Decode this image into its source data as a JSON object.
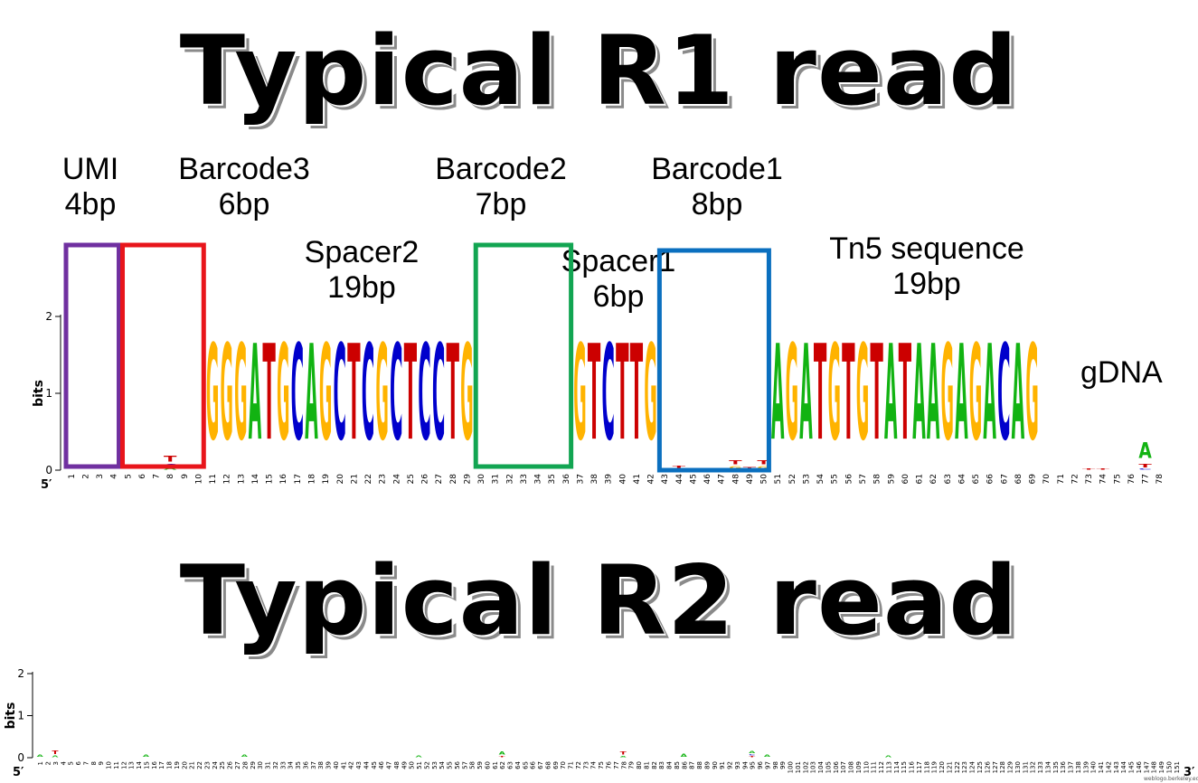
{
  "r1": {
    "title": "Typical R1 read",
    "segments": [
      {
        "id": "umi",
        "name": "UMI",
        "length": "4bp",
        "color": "#7030a0",
        "from": 1,
        "to": 4
      },
      {
        "id": "barcode3",
        "name": "Barcode3",
        "length": "6bp",
        "color": "#e8151b",
        "from": 5,
        "to": 10
      },
      {
        "id": "spacer2",
        "name": "Spacer2",
        "length": "19bp",
        "from": 11,
        "to": 29
      },
      {
        "id": "barcode2",
        "name": "Barcode2",
        "length": "7bp",
        "color": "#12a552",
        "from": 30,
        "to": 36
      },
      {
        "id": "spacer1",
        "name": "Spacer1",
        "length": "6bp",
        "from": 37,
        "to": 42
      },
      {
        "id": "barcode1",
        "name": "Barcode1",
        "length": "8bp",
        "color": "#0a6fbf",
        "from": 43,
        "to": 50
      },
      {
        "id": "tn5",
        "name": "Tn5 sequence",
        "length": "19bp",
        "from": 51,
        "to": 69
      }
    ],
    "gdna_label": "gDNA",
    "y_axis_title": "bits",
    "y_ticks": [
      "0",
      "1",
      "2"
    ],
    "five_prime": "5′",
    "positions": 78
  },
  "r2": {
    "title": "Typical R2 read",
    "y_axis_title": "bits",
    "y_ticks": [
      "0",
      "1",
      "2"
    ],
    "five_prime": "5′",
    "three_prime": "3′",
    "positions": 151,
    "credit": "weblogo.berkeley.edu"
  },
  "colors": {
    "A": "#12b312",
    "C": "#0000cc",
    "G": "#ffb300",
    "T": "#cc0000"
  },
  "chart_data": [
    {
      "type": "sequence-logo",
      "title": "Typical R1 read",
      "ylabel": "bits",
      "ylim": [
        0,
        2
      ],
      "x": "positions 1-78",
      "consensus_positions": [
        {
          "pos": 11,
          "base": "G",
          "bits": 2
        },
        {
          "pos": 12,
          "base": "G",
          "bits": 2
        },
        {
          "pos": 13,
          "base": "G",
          "bits": 2
        },
        {
          "pos": 14,
          "base": "A",
          "bits": 2
        },
        {
          "pos": 15,
          "base": "T",
          "bits": 2
        },
        {
          "pos": 16,
          "base": "G",
          "bits": 2
        },
        {
          "pos": 17,
          "base": "C",
          "bits": 2
        },
        {
          "pos": 18,
          "base": "A",
          "bits": 2
        },
        {
          "pos": 19,
          "base": "G",
          "bits": 2
        },
        {
          "pos": 20,
          "base": "C",
          "bits": 2
        },
        {
          "pos": 21,
          "base": "T",
          "bits": 2
        },
        {
          "pos": 22,
          "base": "C",
          "bits": 2
        },
        {
          "pos": 23,
          "base": "G",
          "bits": 2
        },
        {
          "pos": 24,
          "base": "C",
          "bits": 2
        },
        {
          "pos": 25,
          "base": "T",
          "bits": 2
        },
        {
          "pos": 26,
          "base": "C",
          "bits": 2
        },
        {
          "pos": 27,
          "base": "C",
          "bits": 2
        },
        {
          "pos": 28,
          "base": "T",
          "bits": 2
        },
        {
          "pos": 29,
          "base": "G",
          "bits": 2
        },
        {
          "pos": 37,
          "base": "G",
          "bits": 2
        },
        {
          "pos": 38,
          "base": "T",
          "bits": 2
        },
        {
          "pos": 39,
          "base": "C",
          "bits": 2
        },
        {
          "pos": 40,
          "base": "T",
          "bits": 2
        },
        {
          "pos": 41,
          "base": "T",
          "bits": 2
        },
        {
          "pos": 42,
          "base": "G",
          "bits": 2
        },
        {
          "pos": 51,
          "base": "A",
          "bits": 2
        },
        {
          "pos": 52,
          "base": "G",
          "bits": 2
        },
        {
          "pos": 53,
          "base": "A",
          "bits": 2
        },
        {
          "pos": 54,
          "base": "T",
          "bits": 2
        },
        {
          "pos": 55,
          "base": "G",
          "bits": 2
        },
        {
          "pos": 56,
          "base": "T",
          "bits": 2
        },
        {
          "pos": 57,
          "base": "G",
          "bits": 2
        },
        {
          "pos": 58,
          "base": "T",
          "bits": 2
        },
        {
          "pos": 59,
          "base": "A",
          "bits": 2
        },
        {
          "pos": 60,
          "base": "T",
          "bits": 2
        },
        {
          "pos": 61,
          "base": "A",
          "bits": 2
        },
        {
          "pos": 62,
          "base": "A",
          "bits": 2
        },
        {
          "pos": 63,
          "base": "G",
          "bits": 2
        },
        {
          "pos": 64,
          "base": "A",
          "bits": 2
        },
        {
          "pos": 65,
          "base": "G",
          "bits": 2
        },
        {
          "pos": 66,
          "base": "A",
          "bits": 2
        },
        {
          "pos": 67,
          "base": "C",
          "bits": 2
        },
        {
          "pos": 68,
          "base": "A",
          "bits": 2
        },
        {
          "pos": 69,
          "base": "G",
          "bits": 2
        }
      ],
      "low_info_positions": [
        {
          "pos": 8,
          "bases": [
            {
              "base": "T",
              "bits": 0.12
            },
            {
              "base": "C",
              "bits": 0.06
            },
            {
              "base": "A",
              "bits": 0.03
            }
          ]
        },
        {
          "pos": 44,
          "bases": [
            {
              "base": "T",
              "bits": 0.05
            },
            {
              "base": "C",
              "bits": 0.02
            }
          ]
        },
        {
          "pos": 48,
          "bases": [
            {
              "base": "T",
              "bits": 0.08
            },
            {
              "base": "G",
              "bits": 0.06
            }
          ]
        },
        {
          "pos": 49,
          "bases": [
            {
              "base": "T",
              "bits": 0.05
            }
          ]
        },
        {
          "pos": 50,
          "bases": [
            {
              "base": "T",
              "bits": 0.08
            },
            {
              "base": "G",
              "bits": 0.06
            }
          ]
        },
        {
          "pos": 73,
          "bases": [
            {
              "base": "T",
              "bits": 0.02
            }
          ]
        },
        {
          "pos": 74,
          "bases": [
            {
              "base": "T",
              "bits": 0.02
            }
          ]
        },
        {
          "pos": 77,
          "bases": [
            {
              "base": "A",
              "bits": 0.33
            },
            {
              "base": "T",
              "bits": 0.07
            },
            {
              "base": "C",
              "bits": 0.02
            }
          ]
        }
      ]
    },
    {
      "type": "sequence-logo",
      "title": "Typical R2 read",
      "ylabel": "bits",
      "ylim": [
        0,
        2
      ],
      "x": "positions 1-151",
      "low_info_positions": [
        {
          "pos": 1,
          "bases": [
            {
              "base": "A",
              "bits": 0.08
            }
          ]
        },
        {
          "pos": 3,
          "bases": [
            {
              "base": "T",
              "bits": 0.14
            },
            {
              "base": "A",
              "bits": 0.06
            }
          ]
        },
        {
          "pos": 15,
          "bases": [
            {
              "base": "A",
              "bits": 0.08
            }
          ]
        },
        {
          "pos": 28,
          "bases": [
            {
              "base": "A",
              "bits": 0.08
            }
          ]
        },
        {
          "pos": 51,
          "bases": [
            {
              "base": "A",
              "bits": 0.06
            }
          ]
        },
        {
          "pos": 62,
          "bases": [
            {
              "base": "A",
              "bits": 0.1
            },
            {
              "base": "T",
              "bits": 0.05
            }
          ]
        },
        {
          "pos": 78,
          "bases": [
            {
              "base": "T",
              "bits": 0.12
            },
            {
              "base": "A",
              "bits": 0.05
            }
          ]
        },
        {
          "pos": 86,
          "bases": [
            {
              "base": "A",
              "bits": 0.1
            }
          ]
        },
        {
          "pos": 95,
          "bases": [
            {
              "base": "A",
              "bits": 0.08
            },
            {
              "base": "C",
              "bits": 0.05
            },
            {
              "base": "T",
              "bits": 0.04
            }
          ]
        },
        {
          "pos": 97,
          "bases": [
            {
              "base": "A",
              "bits": 0.08
            }
          ]
        },
        {
          "pos": 113,
          "bases": [
            {
              "base": "A",
              "bits": 0.06
            }
          ]
        }
      ]
    }
  ]
}
